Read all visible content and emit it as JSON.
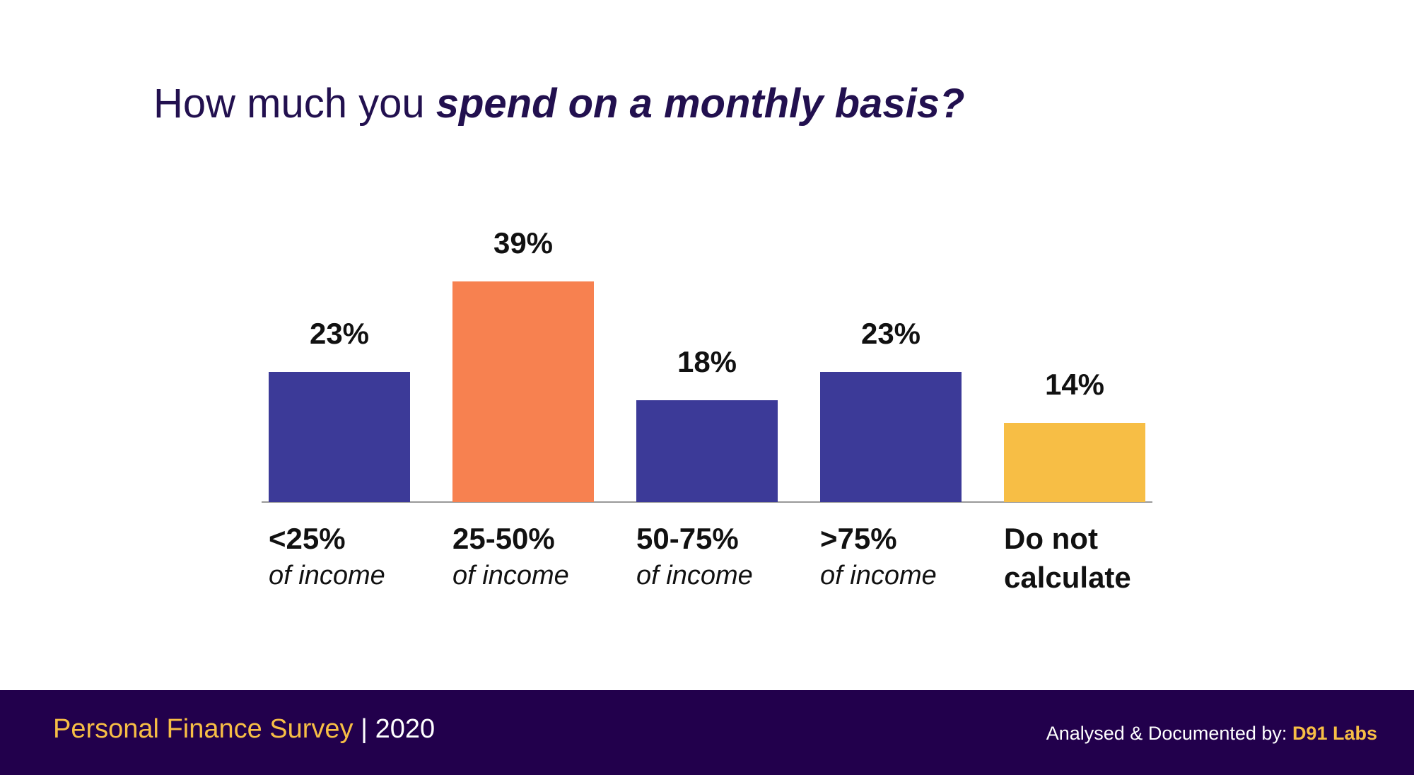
{
  "title": {
    "prefix": "How much you ",
    "emphasis": "spend on a monthly basis?"
  },
  "chart_data": {
    "type": "bar",
    "title": "How much you spend on a monthly basis?",
    "categories": [
      "<25% of income",
      "25-50% of income",
      "50-75% of income",
      ">75% of income",
      "Do not calculate"
    ],
    "category_labels": [
      {
        "main": "<25%",
        "sub": "of income"
      },
      {
        "main": "25-50%",
        "sub": "of income"
      },
      {
        "main": "50-75%",
        "sub": "of income"
      },
      {
        "main": ">75%",
        "sub": "of income"
      },
      {
        "main": "Do not",
        "sub": "calculate"
      }
    ],
    "values": [
      23,
      39,
      18,
      23,
      14
    ],
    "value_labels": [
      "23%",
      "39%",
      "18%",
      "23%",
      "14%"
    ],
    "colors": [
      "#3c3a98",
      "#f78150",
      "#3c3a98",
      "#3c3a98",
      "#f7be45"
    ],
    "ylim": [
      0,
      39
    ],
    "grid": false,
    "legend": "none"
  },
  "footer": {
    "survey": "Personal Finance Survey",
    "separator": "|",
    "year": "2020",
    "credit_prefix": "Analysed & Documented by: ",
    "credit_brand": "D91 Labs"
  },
  "colors": {
    "title": "#22104f",
    "footer_bg": "#22004c",
    "accent_yellow": "#f7be45",
    "axis": "#999999"
  }
}
